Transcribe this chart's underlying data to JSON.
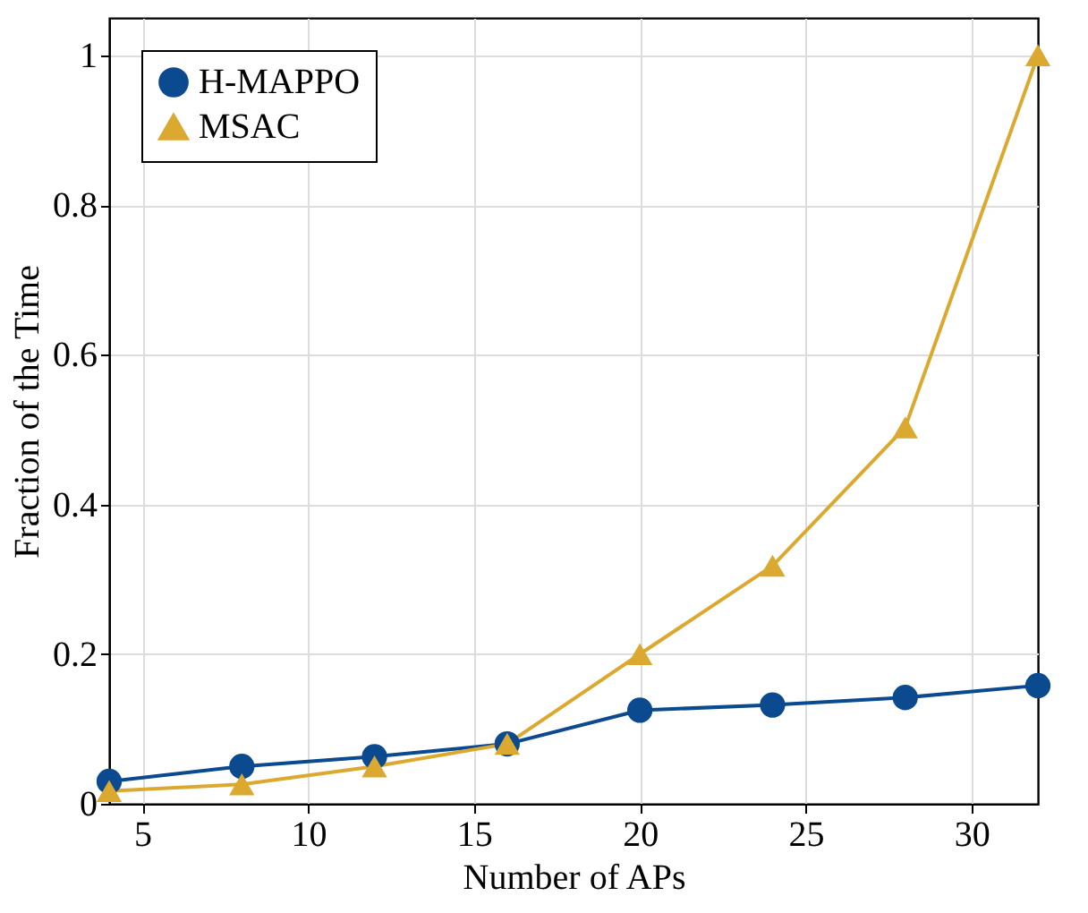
{
  "chart_data": {
    "type": "line",
    "xlabel": "Number of APs",
    "ylabel": "Fraction of the Time",
    "x": [
      4,
      8,
      12,
      16,
      20,
      24,
      28,
      32
    ],
    "series": [
      {
        "name": "H-MAPPO",
        "color": "#0b4a8f",
        "marker": "circle",
        "values": [
          0.03,
          0.05,
          0.063,
          0.08,
          0.125,
          0.132,
          0.142,
          0.158
        ]
      },
      {
        "name": "MSAC",
        "color": "#dca930",
        "marker": "triangle",
        "values": [
          0.017,
          0.026,
          0.05,
          0.08,
          0.2,
          0.318,
          0.503,
          1.0
        ]
      }
    ],
    "xlim": [
      4,
      32
    ],
    "ylim": [
      0,
      1.05
    ],
    "xticks": [
      5,
      10,
      15,
      20,
      25,
      30
    ],
    "yticks": [
      0,
      0.2,
      0.4,
      0.6,
      0.8,
      1
    ],
    "grid": true,
    "legend": "top left",
    "line_style": "solid"
  }
}
